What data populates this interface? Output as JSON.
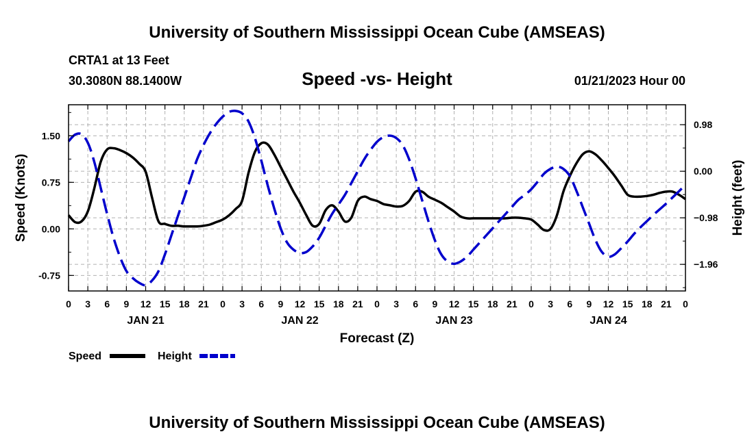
{
  "header": {
    "title": "University of Southern Mississippi Ocean Cube (AMSEAS)",
    "station": "CRTA1 at 13 Feet",
    "coords": "30.3080N  88.1400W",
    "chart_title": "Speed -vs- Height",
    "datetime": "01/21/2023 Hour 00"
  },
  "footer": {
    "title": "University of Southern Mississippi Ocean Cube (AMSEAS)"
  },
  "legend": {
    "speed_label": "Speed",
    "height_label": "Height"
  },
  "colors": {
    "speed": "#000000",
    "height": "#0000cc",
    "grid": "#b0b0b0"
  },
  "chart_data": {
    "type": "line",
    "title": "Speed -vs- Height",
    "xlabel": "Forecast (Z)",
    "ylabel": "Speed (Knots)",
    "y2label": "Height (feet)",
    "grid": true,
    "xlim": [
      0,
      96
    ],
    "x_tick_step_hours": 3,
    "x_tick_labels": [
      "0",
      "3",
      "6",
      "9",
      "12",
      "15",
      "18",
      "21",
      "0",
      "3",
      "6",
      "9",
      "12",
      "15",
      "18",
      "21",
      "0",
      "3",
      "6",
      "9",
      "12",
      "15",
      "18",
      "21",
      "0",
      "3",
      "6",
      "9",
      "12",
      "15",
      "18",
      "21",
      "0"
    ],
    "day_labels": [
      {
        "hour": 12,
        "label": "JAN 21"
      },
      {
        "hour": 36,
        "label": "JAN 22"
      },
      {
        "hour": 60,
        "label": "JAN 23"
      },
      {
        "hour": 84,
        "label": "JAN 24"
      }
    ],
    "ylim": [
      -1.0,
      2.0
    ],
    "yticks": [
      -0.75,
      0.0,
      0.75,
      1.5
    ],
    "ytick_labels": [
      "-0.75",
      "0.00",
      "0.75",
      "1.50"
    ],
    "y2lim": [
      -2.52,
      1.4
    ],
    "y2ticks": [
      -1.96,
      -0.98,
      0.0,
      0.98
    ],
    "y2tick_labels": [
      "−1.96",
      "−0.98",
      "0.00",
      "0.98"
    ],
    "series": [
      {
        "name": "Speed",
        "axis": "left",
        "style": "solid",
        "points": [
          [
            0,
            0.22
          ],
          [
            1,
            0.11
          ],
          [
            2,
            0.12
          ],
          [
            3,
            0.28
          ],
          [
            4,
            0.65
          ],
          [
            5,
            1.08
          ],
          [
            6,
            1.28
          ],
          [
            7,
            1.3
          ],
          [
            8,
            1.27
          ],
          [
            9,
            1.22
          ],
          [
            10,
            1.15
          ],
          [
            11,
            1.05
          ],
          [
            12,
            0.92
          ],
          [
            13,
            0.5
          ],
          [
            14,
            0.12
          ],
          [
            15,
            0.08
          ],
          [
            16,
            0.05
          ],
          [
            17,
            0.05
          ],
          [
            18,
            0.04
          ],
          [
            19,
            0.04
          ],
          [
            20,
            0.04
          ],
          [
            21,
            0.05
          ],
          [
            22,
            0.07
          ],
          [
            23,
            0.11
          ],
          [
            24,
            0.15
          ],
          [
            25,
            0.22
          ],
          [
            26,
            0.32
          ],
          [
            27,
            0.45
          ],
          [
            28,
            0.9
          ],
          [
            29,
            1.24
          ],
          [
            30,
            1.38
          ],
          [
            31,
            1.36
          ],
          [
            32,
            1.2
          ],
          [
            33,
            1.0
          ],
          [
            34,
            0.8
          ],
          [
            35,
            0.6
          ],
          [
            36,
            0.42
          ],
          [
            37,
            0.22
          ],
          [
            38,
            0.05
          ],
          [
            39,
            0.08
          ],
          [
            40,
            0.3
          ],
          [
            41,
            0.38
          ],
          [
            42,
            0.28
          ],
          [
            43,
            0.12
          ],
          [
            44,
            0.18
          ],
          [
            45,
            0.45
          ],
          [
            46,
            0.52
          ],
          [
            47,
            0.48
          ],
          [
            48,
            0.45
          ],
          [
            49,
            0.4
          ],
          [
            50,
            0.38
          ],
          [
            51,
            0.36
          ],
          [
            52,
            0.37
          ],
          [
            53,
            0.45
          ],
          [
            54,
            0.6
          ],
          [
            55,
            0.6
          ],
          [
            56,
            0.52
          ],
          [
            57,
            0.47
          ],
          [
            58,
            0.42
          ],
          [
            59,
            0.35
          ],
          [
            60,
            0.28
          ],
          [
            61,
            0.2
          ],
          [
            62,
            0.17
          ],
          [
            63,
            0.17
          ],
          [
            64,
            0.17
          ],
          [
            65,
            0.17
          ],
          [
            66,
            0.17
          ],
          [
            67,
            0.17
          ],
          [
            68,
            0.17
          ],
          [
            69,
            0.18
          ],
          [
            70,
            0.18
          ],
          [
            71,
            0.17
          ],
          [
            72,
            0.15
          ],
          [
            73,
            0.07
          ],
          [
            74,
            -0.02
          ],
          [
            75,
            0.0
          ],
          [
            76,
            0.22
          ],
          [
            77,
            0.6
          ],
          [
            78,
            0.85
          ],
          [
            79,
            1.05
          ],
          [
            80,
            1.2
          ],
          [
            81,
            1.25
          ],
          [
            82,
            1.2
          ],
          [
            83,
            1.1
          ],
          [
            84,
            0.98
          ],
          [
            85,
            0.85
          ],
          [
            86,
            0.7
          ],
          [
            87,
            0.55
          ],
          [
            88,
            0.52
          ],
          [
            89,
            0.52
          ],
          [
            90,
            0.53
          ],
          [
            91,
            0.55
          ],
          [
            92,
            0.58
          ],
          [
            93,
            0.6
          ],
          [
            94,
            0.6
          ],
          [
            95,
            0.55
          ],
          [
            96,
            0.48
          ]
        ]
      },
      {
        "name": "Height",
        "axis": "right",
        "style": "dashed",
        "points": [
          [
            0,
            0.63
          ],
          [
            1,
            0.77
          ],
          [
            2,
            0.78
          ],
          [
            3,
            0.6
          ],
          [
            4,
            0.2
          ],
          [
            5,
            -0.35
          ],
          [
            6,
            -0.9
          ],
          [
            7,
            -1.4
          ],
          [
            8,
            -1.8
          ],
          [
            9,
            -2.1
          ],
          [
            10,
            -2.25
          ],
          [
            11,
            -2.35
          ],
          [
            12,
            -2.4
          ],
          [
            13,
            -2.3
          ],
          [
            14,
            -2.1
          ],
          [
            15,
            -1.75
          ],
          [
            16,
            -1.35
          ],
          [
            17,
            -0.95
          ],
          [
            18,
            -0.55
          ],
          [
            19,
            -0.15
          ],
          [
            20,
            0.25
          ],
          [
            21,
            0.55
          ],
          [
            22,
            0.8
          ],
          [
            23,
            1.0
          ],
          [
            24,
            1.15
          ],
          [
            25,
            1.25
          ],
          [
            26,
            1.27
          ],
          [
            27,
            1.22
          ],
          [
            28,
            1.05
          ],
          [
            29,
            0.7
          ],
          [
            30,
            0.22
          ],
          [
            31,
            -0.3
          ],
          [
            32,
            -0.78
          ],
          [
            33,
            -1.2
          ],
          [
            34,
            -1.5
          ],
          [
            35,
            -1.65
          ],
          [
            36,
            -1.72
          ],
          [
            37,
            -1.7
          ],
          [
            38,
            -1.58
          ],
          [
            39,
            -1.4
          ],
          [
            40,
            -1.15
          ],
          [
            41,
            -0.9
          ],
          [
            42,
            -0.7
          ],
          [
            43,
            -0.5
          ],
          [
            44,
            -0.25
          ],
          [
            45,
            0.0
          ],
          [
            46,
            0.25
          ],
          [
            47,
            0.45
          ],
          [
            48,
            0.62
          ],
          [
            49,
            0.72
          ],
          [
            50,
            0.75
          ],
          [
            51,
            0.7
          ],
          [
            52,
            0.55
          ],
          [
            53,
            0.25
          ],
          [
            54,
            -0.15
          ],
          [
            55,
            -0.6
          ],
          [
            56,
            -1.05
          ],
          [
            57,
            -1.45
          ],
          [
            58,
            -1.75
          ],
          [
            59,
            -1.9
          ],
          [
            60,
            -1.95
          ],
          [
            61,
            -1.9
          ],
          [
            62,
            -1.8
          ],
          [
            63,
            -1.65
          ],
          [
            64,
            -1.5
          ],
          [
            65,
            -1.35
          ],
          [
            66,
            -1.2
          ],
          [
            67,
            -1.05
          ],
          [
            68,
            -0.9
          ],
          [
            69,
            -0.75
          ],
          [
            70,
            -0.6
          ],
          [
            71,
            -0.5
          ],
          [
            72,
            -0.38
          ],
          [
            73,
            -0.22
          ],
          [
            74,
            -0.05
          ],
          [
            75,
            0.05
          ],
          [
            76,
            0.1
          ],
          [
            77,
            0.05
          ],
          [
            78,
            -0.1
          ],
          [
            79,
            -0.4
          ],
          [
            80,
            -0.75
          ],
          [
            81,
            -1.1
          ],
          [
            82,
            -1.45
          ],
          [
            83,
            -1.7
          ],
          [
            84,
            -1.8
          ],
          [
            85,
            -1.75
          ],
          [
            86,
            -1.62
          ],
          [
            87,
            -1.48
          ],
          [
            88,
            -1.32
          ],
          [
            89,
            -1.18
          ],
          [
            90,
            -1.05
          ],
          [
            91,
            -0.92
          ],
          [
            92,
            -0.8
          ],
          [
            93,
            -0.68
          ],
          [
            94,
            -0.55
          ],
          [
            95,
            -0.42
          ],
          [
            96,
            -0.28
          ]
        ]
      }
    ]
  }
}
